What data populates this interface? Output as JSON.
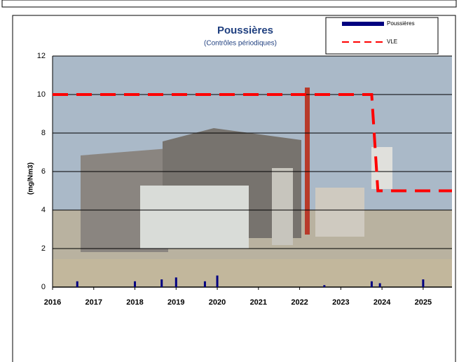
{
  "chart_data": {
    "type": "bar",
    "title": "Poussières",
    "subtitle": "(Contrôles périodiques)",
    "ylabel": "(mg/Nm3)",
    "xlim": [
      2016,
      2025.7
    ],
    "xticks": [
      2016,
      2017,
      2018,
      2019,
      2020,
      2021,
      2022,
      2023,
      2024,
      2025
    ],
    "ylim": [
      0,
      12
    ],
    "yticks": [
      0,
      2,
      4,
      6,
      8,
      10,
      12
    ],
    "grid": true,
    "legend": "top-right",
    "series": [
      {
        "name": "Poussières",
        "color": "#000080",
        "type": "bar",
        "x": [
          2016.6,
          2018.0,
          2018.65,
          2019.0,
          2019.7,
          2020.0,
          2022.6,
          2023.75,
          2023.95,
          2025.0
        ],
        "values": [
          0.3,
          0.3,
          0.4,
          0.5,
          0.3,
          0.6,
          0.1,
          0.3,
          0.2,
          0.4
        ]
      },
      {
        "name": "VLE",
        "color": "#ff0000",
        "type": "line",
        "x": [
          2016,
          2023.75,
          2023.9,
          2025.7
        ],
        "values": [
          10,
          10,
          5,
          5
        ]
      }
    ]
  }
}
